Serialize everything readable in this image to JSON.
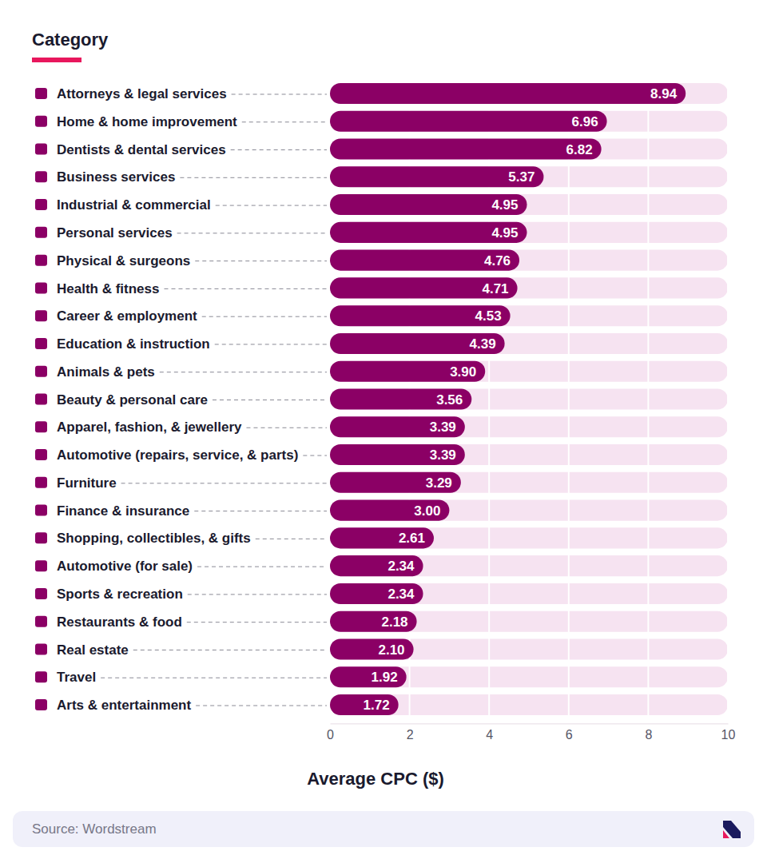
{
  "chart_data": {
    "type": "bar",
    "orientation": "horizontal",
    "y_label": "Category",
    "x_label": "Average CPC ($)",
    "annotations": [
      "Source: Wordstream"
    ],
    "categories": [
      "Attorneys & legal services",
      "Home & home improvement",
      "Dentists & dental services",
      "Business services",
      "Industrial & commercial",
      "Personal services",
      "Physical & surgeons",
      "Health & fitness",
      "Career & employment",
      "Education & instruction",
      "Animals & pets",
      "Beauty & personal care",
      "Apparel, fashion, & jewellery",
      "Automotive (repairs, service, & parts)",
      "Furniture",
      "Finance & insurance",
      "Shopping, collectibles, & gifts",
      "Automotive (for sale)",
      "Sports & recreation",
      "Restaurants & food",
      "Real estate",
      "Travel",
      "Arts & entertainment"
    ],
    "values": [
      8.94,
      6.96,
      6.82,
      5.37,
      4.95,
      4.95,
      4.76,
      4.71,
      4.53,
      4.39,
      3.9,
      3.56,
      3.39,
      3.39,
      3.29,
      3.0,
      2.61,
      2.34,
      2.34,
      2.18,
      2.1,
      1.92,
      1.72
    ],
    "value_labels": [
      "8.94",
      "6.96",
      "6.82",
      "5.37",
      "4.95",
      "4.95",
      "4.76",
      "4.71",
      "4.53",
      "4.39",
      "3.90",
      "3.56",
      "3.39",
      "3.39",
      "3.29",
      "3.00",
      "2.61",
      "2.34",
      "2.34",
      "2.18",
      "2.10",
      "1.92",
      "1.72"
    ],
    "color": "#8b0065",
    "xlim": [
      0,
      10
    ],
    "xticks": [
      0,
      2,
      4,
      6,
      8,
      10
    ],
    "grid": true,
    "data_labels": true
  }
}
